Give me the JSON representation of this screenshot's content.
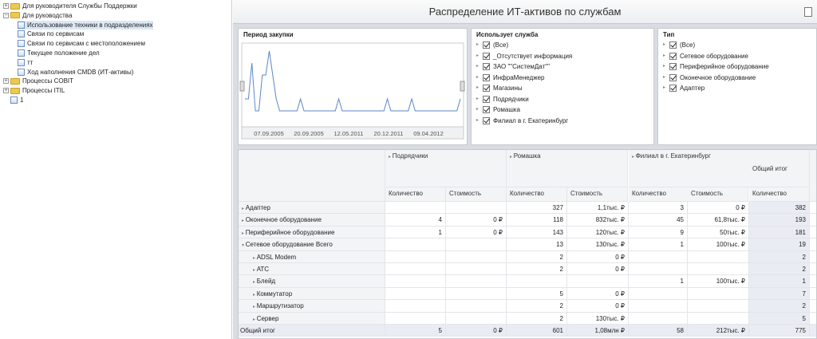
{
  "tree": {
    "items": [
      {
        "label": "Для руководителя Службы Поддержки",
        "type": "folder",
        "exp": "+"
      },
      {
        "label": "Для руководства",
        "type": "folder",
        "exp": "−"
      },
      {
        "label": "Использование техники в подразделениях",
        "type": "report",
        "selected": true
      },
      {
        "label": "Связи по сервисам",
        "type": "report"
      },
      {
        "label": "Связи по сервисам с местоположением",
        "type": "report"
      },
      {
        "label": "Текущее положение дел",
        "type": "report"
      },
      {
        "label": "тт",
        "type": "report"
      },
      {
        "label": "Ход наполнения CMDB (ИТ-активы)",
        "type": "report"
      },
      {
        "label": "Процессы COBIT",
        "type": "folder",
        "exp": "+"
      },
      {
        "label": "Процессы ITIL",
        "type": "folder",
        "exp": "+"
      },
      {
        "label": "1",
        "type": "report"
      }
    ]
  },
  "dashboard": {
    "title": "Распределение ИТ-активов по службам"
  },
  "period": {
    "title": "Период закупки",
    "dates": [
      "07.09.2005",
      "20.09.2005",
      "12.05.2011",
      "20.12.2011",
      "09.04.2012"
    ],
    "series": [
      2,
      2,
      5,
      1,
      1,
      4,
      4,
      6,
      4,
      2,
      1,
      1,
      1,
      1,
      1,
      1,
      2,
      1,
      1,
      1,
      1,
      1,
      1,
      1,
      1,
      1,
      1,
      2,
      1,
      1,
      1,
      1,
      1,
      1,
      1,
      1,
      1,
      1,
      1,
      1,
      1,
      2,
      1,
      1,
      1,
      1,
      1,
      1,
      2,
      1,
      1,
      1,
      1,
      1,
      1,
      1,
      1,
      1,
      1,
      1,
      1,
      1,
      2
    ]
  },
  "service": {
    "title": "Использует служба",
    "items": [
      "(Все)",
      "_Отсутствует информация",
      "ЗАО \"\"СистемДат\"\"",
      "ИнфраМенеджер",
      "Магазины",
      "Подрядчики",
      "Ромашка",
      "Филиал в г. Екатеринбург"
    ]
  },
  "type": {
    "title": "Тип",
    "items": [
      "(Все)",
      "Сетевое оборудование",
      "Периферийное оборудование",
      "Оконечное оборудование",
      "Адаптер"
    ]
  },
  "pivot": {
    "col_groups": [
      "Подрядчики",
      "Ромашка",
      "Филиал в г. Екатеринбург"
    ],
    "total_label": "Общий итог",
    "qty": "Количество",
    "cost": "Стоимость",
    "rows": [
      {
        "label": "Адаптер",
        "lvl": 0,
        "v": [
          "",
          "",
          "327",
          "1,1тыс. ₽",
          "3",
          "0 ₽",
          "382"
        ]
      },
      {
        "label": "Оконечное оборудование",
        "lvl": 0,
        "v": [
          "4",
          "0 ₽",
          "118",
          "832тыс. ₽",
          "45",
          "61,8тыс. ₽",
          "193"
        ]
      },
      {
        "label": "Периферийное оборудование",
        "lvl": 0,
        "v": [
          "1",
          "0 ₽",
          "143",
          "120тыс. ₽",
          "9",
          "50тыс. ₽",
          "181"
        ]
      },
      {
        "label": "Сетевое оборудование Всего",
        "lvl": 0,
        "open": true,
        "v": [
          "",
          "",
          "13",
          "130тыс. ₽",
          "1",
          "100тыс. ₽",
          "19"
        ]
      },
      {
        "label": "ADSL Modem",
        "lvl": 1,
        "v": [
          "",
          "",
          "2",
          "0 ₽",
          "",
          "",
          "2"
        ]
      },
      {
        "label": "АТС",
        "lvl": 1,
        "v": [
          "",
          "",
          "2",
          "0 ₽",
          "",
          "",
          "2"
        ]
      },
      {
        "label": "Блейд",
        "lvl": 1,
        "v": [
          "",
          "",
          "",
          "",
          "1",
          "100тыс. ₽",
          "1"
        ]
      },
      {
        "label": "Коммутатор",
        "lvl": 1,
        "v": [
          "",
          "",
          "5",
          "0 ₽",
          "",
          "",
          "7"
        ]
      },
      {
        "label": "Маршрутизатор",
        "lvl": 1,
        "v": [
          "",
          "",
          "2",
          "0 ₽",
          "",
          "",
          "2"
        ]
      },
      {
        "label": "Сервер",
        "lvl": 1,
        "v": [
          "",
          "",
          "2",
          "130тыс. ₽",
          "",
          "",
          "5"
        ]
      },
      {
        "label": "Общий итог",
        "lvl": -1,
        "v": [
          "5",
          "0 ₽",
          "601",
          "1,08млн ₽",
          "58",
          "212тыс. ₽",
          "775"
        ]
      }
    ]
  }
}
